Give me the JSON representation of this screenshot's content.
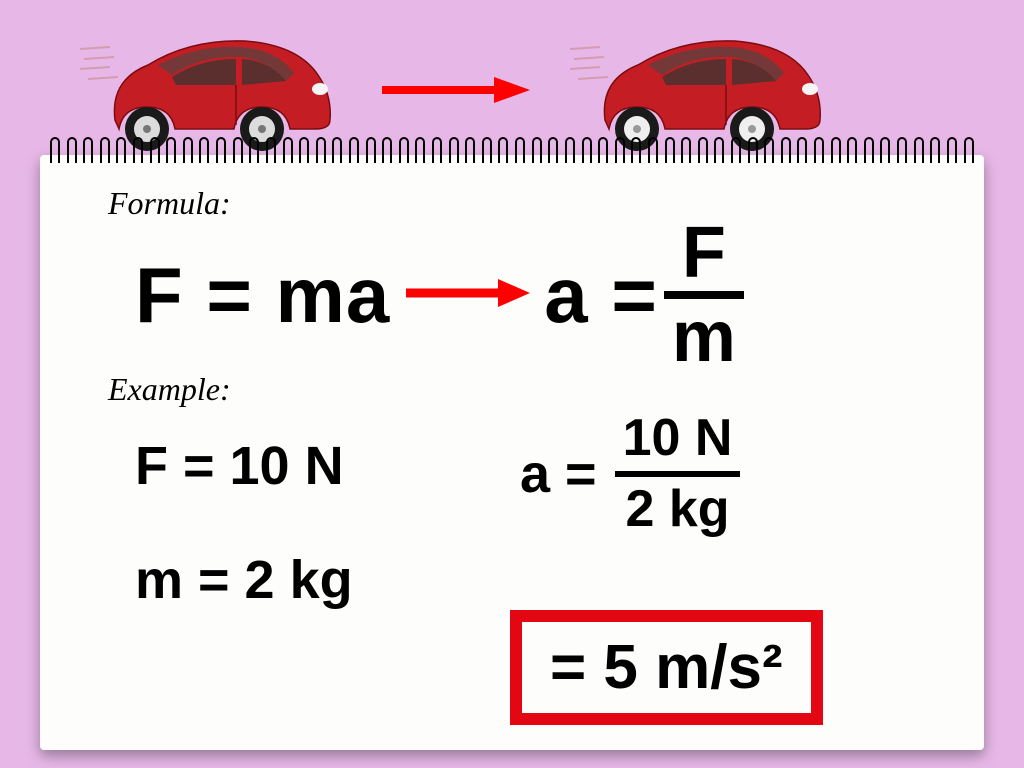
{
  "background_color": "#e7b8e7",
  "arrow_color": "#ff0000",
  "car": {
    "body_color": "#c41e24",
    "body_dark": "#8a0f14",
    "window_color": "#6a3b3a",
    "wheel_rim": "#dcdcdc",
    "tire": "#1a1a1a",
    "speed_lines": "#c88a8a"
  },
  "notepad": {
    "paper_color": "#fdfdfb",
    "label_formula": "Formula:",
    "label_example": "Example:",
    "formula_lhs": "F = ma",
    "formula_rhs_a": "a =",
    "fraction_num": "F",
    "fraction_den": "m",
    "example_f": "F  = 10 N",
    "example_m": "m = 2 kg",
    "example_a": "a  =",
    "example_frac_num": "10 N",
    "example_frac_den": "2 kg",
    "answer": "=  5 m/s²",
    "answer_border": "#e30613",
    "label_fontsize": 32,
    "eq_fontsize": 78,
    "example_fontsize": 54,
    "answer_fontsize": 62
  }
}
